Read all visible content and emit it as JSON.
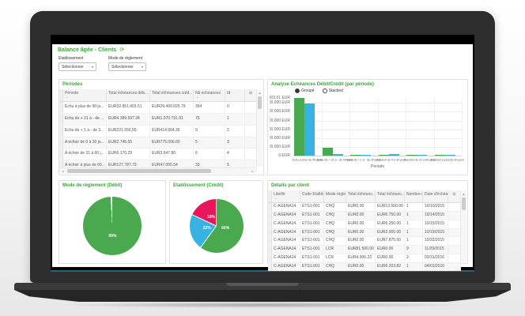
{
  "colors": {
    "accent_green": "#3aa63a",
    "debit_green": "#4aa84e",
    "credit_blue": "#36b3e3",
    "pie_red": "#e8175d"
  },
  "icons": {
    "refresh": "⟳",
    "dropdown": "▾",
    "sort": "⌄",
    "grid": "⊞",
    "scroll_up": "▲",
    "scroll_down": "▼",
    "scroll_left": "◂",
    "scroll_right": "▸"
  },
  "app": {
    "title": "Balance âgée - Clients"
  },
  "filters": {
    "etablissement": {
      "label": "Etablissement",
      "value": "Sélectionner"
    },
    "mode_reglement": {
      "label": "Mode de règlement",
      "value": "Sélectionner"
    }
  },
  "periodes": {
    "title": "Périodes",
    "columns": [
      "Période",
      "Total échéances déb...",
      "Total échéances créd...",
      "Nb échéances",
      "Id"
    ],
    "sort_columns": [
      0,
      3
    ],
    "rows": [
      [
        "Echu à plus de 90 jo...",
        "EUR32.851.903.51",
        "EUR29.490.025.79",
        "354",
        "0"
      ],
      [
        "Echu de + 31 à - de ...",
        "EUR4.389.597.34",
        "EUR1.070.731.91",
        "75",
        "1"
      ],
      [
        "Echu de + 1 à - de 3...",
        "EUR221.056.56",
        "EUR414.904.36",
        "9",
        "2"
      ],
      [
        "A échoir de 0 à 30 jo...",
        "EUR2.745.55",
        "EUR775.006.00",
        "5",
        "3"
      ],
      [
        "A échoir de 31 à 60 j...",
        "EUR6.170.29",
        "EUR3.647.80",
        "6",
        "4"
      ],
      [
        "A échoir à plus de 60...",
        "EUR127.787.79",
        "EUR47.095.54",
        "33",
        "5"
      ]
    ]
  },
  "details": {
    "title": "Détails par client",
    "columns": [
      "Libellé",
      "Code Etablis...",
      "Mode règlem...",
      "Total échéanc...",
      "Total échéanc...",
      "Nombre d'éch...",
      "Date d'échéa..."
    ],
    "sort_columns": [
      0
    ],
    "rows": [
      [
        "C-AGENA14",
        "ETS1-001",
        "CHQ",
        "EUR0.00",
        "EUR13.500.00",
        "1",
        "10/10/2015"
      ],
      [
        "C-AGENA14",
        "ETS1-001",
        "CHQ",
        "EUR0.00",
        "EUR6.750.00",
        "1",
        "10/14/2015"
      ],
      [
        "C-AGENA14",
        "ETS1-001",
        "CHQ",
        "EUR0.00",
        "EUR6.250.00",
        "1",
        "10/15/2015"
      ],
      [
        "C-AGENA14",
        "ETS1-001",
        "CHQ",
        "EUR0.00",
        "EUR3.000.00",
        "1",
        "10/19/2015"
      ],
      [
        "C-AGENA14",
        "ETS1-001",
        "CHQ",
        "EUR0.00",
        "EUR7.875.00",
        "1",
        "10/22/2015"
      ],
      [
        "C-AGENA14",
        "ETS1-001",
        "LCR",
        "EUR81.500.00",
        "EUR0.00",
        "9",
        "11/29/2015"
      ],
      [
        "C-AGENA14",
        "ETS1-001",
        "LCR",
        "EUR4.906.22",
        "EUR0.00",
        "2",
        "03/31/2016"
      ],
      [
        "C-AGENA14",
        "ETS1-001",
        "CHQ",
        "EUR0.00",
        "EUR6.203.82",
        "1",
        "04/01/2016"
      ]
    ]
  },
  "chart_data": [
    {
      "type": "bar",
      "title": "Analyse Echéances Débit/Crédit (par période)",
      "legend": [
        "Groupé",
        "Stacked"
      ],
      "categories": [
        "Echu à plus de 90 jours",
        "Echu de + 31 à - de 90 jours",
        "Echu de + 1 à - de 30 jours",
        "A échoir de 0 à 30 jours",
        "A échoir de 31 à 60 jours",
        "A échoir à plus de 60 jours"
      ],
      "series": [
        {
          "name": "Débit",
          "color": "#4aa84e",
          "values": [
            32851903.51,
            4389597.34,
            221056.56,
            2745.55,
            6170.29,
            127787.79
          ]
        },
        {
          "name": "Crédit",
          "color": "#36b3e3",
          "values": [
            29490025.79,
            1070731.91,
            414904.36,
            775006.0,
            3647.8,
            47095.54
          ]
        }
      ],
      "xlabel": "Période",
      "ylim": [
        0,
        32851903.51
      ],
      "grid": true,
      "legend_position": "top",
      "y_ticks": [
        {
          "label": "32.851.903.51 EUR",
          "value": 32851903.51
        },
        {
          "label": "30.000.000 EUR",
          "value": 30000000
        },
        {
          "label": "25.000.000 EUR",
          "value": 25000000
        },
        {
          "label": "20.000.000 EUR",
          "value": 20000000
        },
        {
          "label": "15.000.000 EUR",
          "value": 15000000
        },
        {
          "label": "10.000.000 EUR",
          "value": 10000000
        },
        {
          "label": "5.000.000 EUR",
          "value": 5000000
        },
        {
          "label": "0 EUR",
          "value": 0
        }
      ]
    },
    {
      "type": "pie",
      "title": "Mode de règlement (Débit)",
      "values": [
        99,
        1
      ],
      "colors": [
        "#4aa84e",
        "#ffffff"
      ],
      "labels": [
        "99%",
        ""
      ],
      "separators": false
    },
    {
      "type": "pie",
      "title": "Etablissement (Crédit)",
      "values": [
        60,
        22,
        18
      ],
      "colors": [
        "#4aa84e",
        "#36b3e3",
        "#e8175d"
      ],
      "labels": [
        "60%",
        "22%",
        "18%"
      ],
      "separators": true
    }
  ]
}
